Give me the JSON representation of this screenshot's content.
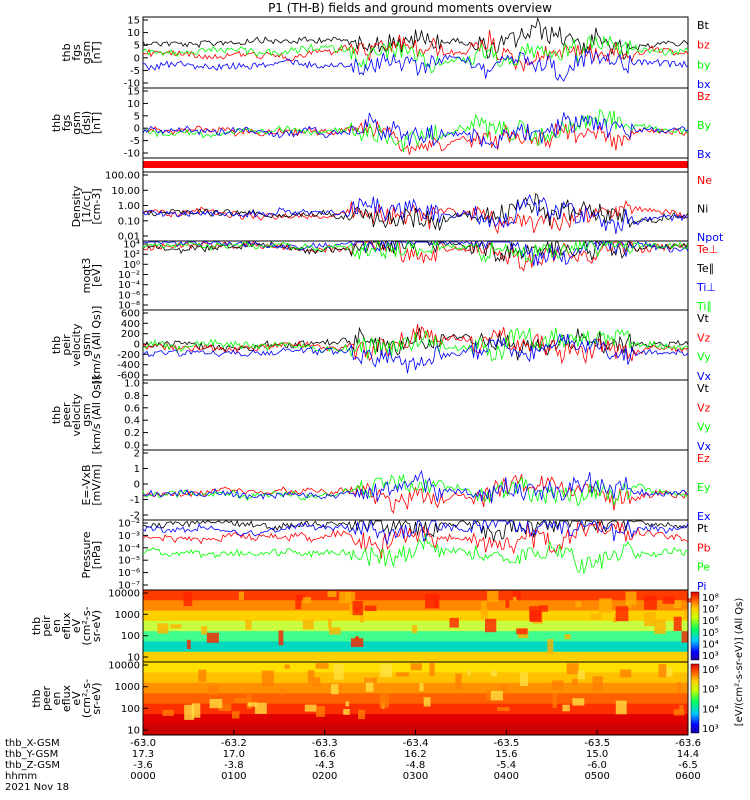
{
  "title": "P1 (TH-B) fields and ground moments overview",
  "colors": {
    "black": "#000000",
    "red": "#ff0000",
    "green": "#00ff00",
    "blue": "#0000ff"
  },
  "chart_data": [
    {
      "type": "line",
      "id": "p1",
      "ylabel": [
        "thb",
        "fgs",
        "gsm",
        "[nT]"
      ],
      "yticks": [
        "15",
        "10",
        "5",
        "0",
        "-5",
        "-10"
      ],
      "ylim": [
        -15,
        16
      ],
      "series": [
        {
          "name": "Bt",
          "color": "black"
        },
        {
          "name": "bz",
          "color": "red"
        },
        {
          "name": "by",
          "color": "green"
        },
        {
          "name": "bx",
          "color": "blue"
        }
      ]
    },
    {
      "type": "line",
      "id": "p2",
      "ylabel": [
        "thb",
        "fgs",
        "gsm",
        "(dsl)",
        "[nT]"
      ],
      "yticks": [
        "15",
        "10",
        "5",
        "0",
        "-5",
        "-10"
      ],
      "ylim": [
        -15,
        16
      ],
      "series": [
        {
          "name": "Bz",
          "color": "red"
        },
        {
          "name": "By",
          "color": "green"
        },
        {
          "name": "Bx",
          "color": "blue"
        }
      ]
    },
    {
      "type": "line",
      "id": "p4",
      "ylabel": [
        "Density",
        "[1/cc]",
        "[cm-3]"
      ],
      "log": true,
      "yticks": [
        "100.00",
        "10.00",
        "1.00",
        "0.10",
        "0.01"
      ],
      "series": [
        {
          "name": "Ne",
          "color": "red"
        },
        {
          "name": "Ni",
          "color": "black"
        },
        {
          "name": "Npot",
          "color": "blue"
        }
      ]
    },
    {
      "type": "line",
      "id": "p5",
      "ylabel": [
        "moqt3",
        "[eV]"
      ],
      "log": true,
      "yticks": [
        "10⁴",
        "10²",
        "10⁰",
        "10⁻²",
        "10⁻⁴",
        "10⁻⁶",
        "10⁻⁸"
      ],
      "series": [
        {
          "name": "Te⊥",
          "color": "red"
        },
        {
          "name": "Te∥",
          "color": "black"
        },
        {
          "name": "Ti⊥",
          "color": "blue"
        },
        {
          "name": "Ti∥",
          "color": "green"
        }
      ]
    },
    {
      "type": "line",
      "id": "p6",
      "ylabel": [
        "thb",
        "peir",
        "velocity",
        "gsm",
        "[km/s (All Qs)]"
      ],
      "yticks": [
        "600",
        "400",
        "200",
        "0",
        "-200",
        "-400",
        "-600"
      ],
      "ylim": [
        -600,
        600
      ],
      "series": [
        {
          "name": "Vt",
          "color": "black"
        },
        {
          "name": "Vz",
          "color": "red"
        },
        {
          "name": "Vy",
          "color": "green"
        },
        {
          "name": "Vx",
          "color": "blue"
        }
      ]
    },
    {
      "type": "line",
      "id": "p7",
      "ylabel": [
        "thb",
        "peer",
        "velocity",
        "gsm",
        "[km/s (All Qs)]"
      ],
      "yticks": [
        "1.0",
        "0.8",
        "0.6",
        "0.4",
        "0.2",
        "0.0"
      ],
      "ylim": [
        0,
        1
      ],
      "series": [
        {
          "name": "Vt",
          "color": "black"
        },
        {
          "name": "Vz",
          "color": "red"
        },
        {
          "name": "Vy",
          "color": "green"
        },
        {
          "name": "Vx",
          "color": "blue"
        }
      ]
    },
    {
      "type": "line",
      "id": "p8",
      "ylabel": [
        "E=-VxB",
        "[mV/m]"
      ],
      "yticks": [
        "2",
        "1",
        "0",
        "-1",
        "-2"
      ],
      "ylim": [
        -2,
        3
      ],
      "series": [
        {
          "name": "Ez",
          "color": "red"
        },
        {
          "name": "Ey",
          "color": "green"
        },
        {
          "name": "Ex",
          "color": "blue"
        }
      ]
    },
    {
      "type": "line",
      "id": "p9",
      "ylabel": [
        "Pressure",
        "[nPa]"
      ],
      "log": true,
      "yticks": [
        "10⁻²",
        "10⁻³",
        "10⁻⁴",
        "10⁻⁵",
        "10⁻⁶",
        "10⁻⁷"
      ],
      "series": [
        {
          "name": "Pt",
          "color": "black"
        },
        {
          "name": "Pb",
          "color": "red"
        },
        {
          "name": "Pe",
          "color": "green"
        },
        {
          "name": "Pi",
          "color": "blue"
        }
      ]
    },
    {
      "type": "heatmap",
      "id": "p10",
      "ylabel": [
        "thb",
        "peir",
        "en",
        "eflux",
        "eV",
        "(cm²-s-",
        "sr-eV)"
      ],
      "yticks": [
        "10000",
        "1000",
        "100",
        "10"
      ]
    },
    {
      "type": "heatmap",
      "id": "p11",
      "ylabel": [
        "thb",
        "peer",
        "en",
        "eflux",
        "eV",
        "(cm²-s-",
        "sr-eV)"
      ],
      "yticks": [
        "10000",
        "1000",
        "100",
        "10"
      ]
    }
  ],
  "colorbar": {
    "label": "[eV/(cm²-s-sr-eV)] (All Qs)",
    "ticks1": [
      "10⁸",
      "10⁷",
      "10⁶",
      "10⁵",
      "10⁴",
      "10³"
    ],
    "ticks2": [
      "10⁶",
      "10⁵",
      "10⁴",
      "10³"
    ]
  },
  "xaxis": {
    "rows": [
      {
        "label": "thb_X-GSM",
        "values": [
          "-63.0",
          "-63.2",
          "-63.3",
          "-63.4",
          "-63.5",
          "-63.5",
          "-63.6"
        ]
      },
      {
        "label": "thb_Y-GSM",
        "values": [
          "17.3",
          "17.0",
          "16.6",
          "16.2",
          "15.6",
          "15.0",
          "14.4"
        ]
      },
      {
        "label": "thb_Z-GSM",
        "values": [
          "-3.6",
          "-3.8",
          "-4.3",
          "-4.8",
          "-5.4",
          "-6.0",
          "-6.5"
        ]
      },
      {
        "label": "hhmm",
        "values": [
          "0000",
          "0100",
          "0200",
          "0300",
          "0400",
          "0500",
          "0600"
        ]
      }
    ],
    "date": "2021 Nov 18"
  }
}
